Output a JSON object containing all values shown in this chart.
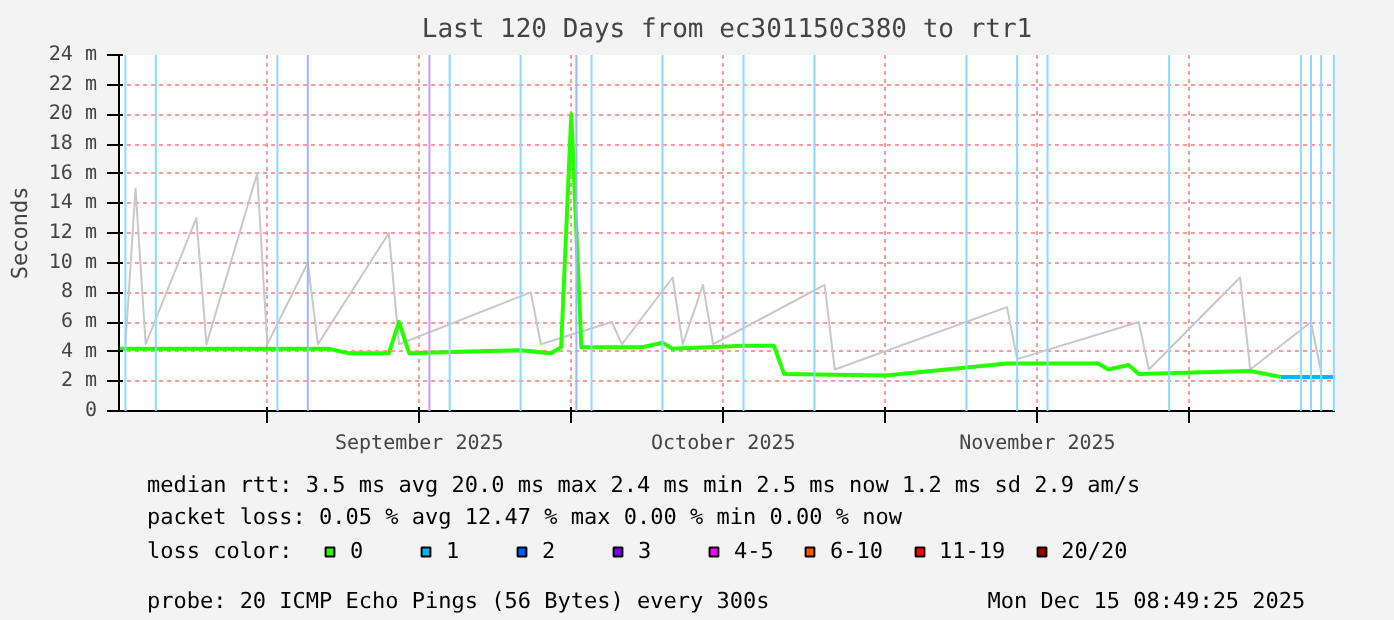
{
  "chart_data": {
    "type": "line",
    "title": "Last 120 Days from ec301150c380 to rtr1",
    "ylabel": "Seconds",
    "legend_title": "loss color:",
    "legend": "bottom",
    "grid": true,
    "xlim": [
      "2025-08-17T08:49",
      "2025-12-15T08:49"
    ],
    "xticks": [
      {
        "value": "2025-09-01",
        "label": null
      },
      {
        "value": "2025-09-16",
        "label": "September 2025"
      },
      {
        "value": "2025-10-01",
        "label": null
      },
      {
        "value": "2025-10-16",
        "label": "October 2025"
      },
      {
        "value": "2025-11-01",
        "label": null
      },
      {
        "value": "2025-11-16",
        "label": "November 2025"
      },
      {
        "value": "2025-12-01",
        "label": null
      }
    ],
    "ylim": [
      0,
      24
    ],
    "yticks": [
      0,
      {
        "value": 2,
        "label": "2 m"
      },
      {
        "value": 4,
        "label": "4 m"
      },
      {
        "value": 6,
        "label": "6 m"
      },
      {
        "value": 8,
        "label": "8 m"
      },
      {
        "value": 10,
        "label": "10 m"
      },
      {
        "value": 12,
        "label": "12 m"
      },
      {
        "value": 14,
        "label": "14 m"
      },
      {
        "value": 16,
        "label": "16 m"
      },
      {
        "value": 18,
        "label": "18 m"
      },
      {
        "value": 20,
        "label": "20 m"
      },
      {
        "value": 22,
        "label": "22 m"
      },
      {
        "value": 24,
        "label": "24 m"
      }
    ],
    "series": [
      {
        "color": "#c8c8c8",
        "x": [
          "2025-08-18",
          "2025-08-19",
          "2025-08-20",
          "2025-08-25",
          "2025-08-26",
          "2025-08-31",
          "2025-09-01",
          "2025-09-05",
          "2025-09-06",
          "2025-09-13",
          "2025-09-14",
          "2025-09-27",
          "2025-09-28",
          "2025-10-05",
          "2025-10-06",
          "2025-10-11",
          "2025-10-12",
          "2025-10-14",
          "2025-10-15",
          "2025-10-26",
          "2025-10-27",
          "2025-11-13",
          "2025-11-14",
          "2025-11-26",
          "2025-11-27",
          "2025-12-06",
          "2025-12-07",
          "2025-12-13",
          "2025-12-14"
        ],
        "values": [
          4.5,
          15,
          4.5,
          13,
          4.5,
          16,
          4.5,
          10,
          4.5,
          12,
          4.5,
          8,
          4.5,
          6,
          4.5,
          9,
          4.5,
          8.5,
          4.5,
          8.5,
          2.8,
          7,
          3.5,
          6,
          2.8,
          9,
          2.8,
          6,
          2.6
        ]
      },
      {
        "name": "0",
        "color": "#26ff00",
        "x": [
          "2025-08-17T09:00",
          "2025-08-24",
          "2025-08-31",
          "2025-09-07",
          "2025-09-09",
          "2025-09-13",
          "2025-09-14",
          "2025-09-15",
          "2025-09-20",
          "2025-09-26",
          "2025-09-29",
          "2025-09-30",
          "2025-10-01",
          "2025-10-02",
          "2025-10-08",
          "2025-10-10",
          "2025-10-11",
          "2025-10-18",
          "2025-10-21",
          "2025-10-22",
          "2025-11-01",
          "2025-11-13",
          "2025-11-22",
          "2025-11-23",
          "2025-11-25",
          "2025-11-26",
          "2025-12-07",
          "2025-12-10"
        ],
        "values": [
          4.2,
          4.2,
          4.2,
          4.2,
          3.9,
          3.9,
          6.0,
          3.9,
          4.0,
          4.1,
          3.9,
          4.3,
          20.0,
          4.3,
          4.3,
          4.6,
          4.2,
          4.4,
          4.4,
          2.5,
          2.4,
          3.2,
          3.2,
          2.8,
          3.1,
          2.5,
          2.7,
          2.3
        ]
      },
      {
        "name": "1",
        "color": "#00b8ff",
        "x": [
          "2025-12-10",
          "2025-12-15T08:00"
        ],
        "values": [
          2.3,
          2.3
        ]
      },
      {
        "name": "2",
        "color": "#0059ff"
      },
      {
        "name": "3",
        "color": "#7e00ff"
      },
      {
        "name": "4-5",
        "color": "#ff00ff"
      },
      {
        "name": "6-10",
        "color": "#ff5500"
      },
      {
        "name": "11-19",
        "color": "#ff0000"
      },
      {
        "name": "20/20",
        "color": "#a10000"
      }
    ],
    "ref_lines": [
      {
        "axis": "x",
        "value": "2025-08-18",
        "color": "#8fd8ff"
      },
      {
        "axis": "x",
        "value": "2025-08-21",
        "color": "#8fd8ff"
      },
      {
        "axis": "x",
        "value": "2025-09-02",
        "color": "#8fd8ff"
      },
      {
        "axis": "x",
        "value": "2025-09-05",
        "color": "#99b8ff"
      },
      {
        "axis": "x",
        "value": "2025-09-17",
        "color": "#cc99ff"
      },
      {
        "axis": "x",
        "value": "2025-09-19",
        "color": "#8fd8ff"
      },
      {
        "axis": "x",
        "value": "2025-09-26",
        "color": "#8fd8ff"
      },
      {
        "axis": "x",
        "value": "2025-10-01T12:00",
        "color": "#99b8ff"
      },
      {
        "axis": "x",
        "value": "2025-10-03",
        "color": "#8fd8ff"
      },
      {
        "axis": "x",
        "value": "2025-10-10",
        "color": "#8fd8ff"
      },
      {
        "axis": "x",
        "value": "2025-10-18",
        "color": "#8fd8ff"
      },
      {
        "axis": "x",
        "value": "2025-10-25",
        "color": "#8fd8ff"
      },
      {
        "axis": "x",
        "value": "2025-11-09",
        "color": "#8fd8ff"
      },
      {
        "axis": "x",
        "value": "2025-11-14",
        "color": "#8fd8ff"
      },
      {
        "axis": "x",
        "value": "2025-11-17",
        "color": "#8fd8ff"
      },
      {
        "axis": "x",
        "value": "2025-11-29",
        "color": "#8fd8ff"
      },
      {
        "axis": "x",
        "value": "2025-12-12",
        "color": "#8fd8ff"
      },
      {
        "axis": "x",
        "value": "2025-12-13",
        "color": "#8fd8ff"
      },
      {
        "axis": "x",
        "value": "2025-12-14",
        "color": "#8fd8ff"
      },
      {
        "axis": "x",
        "value": "2025-12-15T06:00",
        "color": "#8fd8ff"
      }
    ],
    "annotations": [
      "median rtt:  3.5 ms avg  20.0 ms max  2.4 ms min  2.5 ms now  1.2 ms sd  2.9   am/s",
      "packet loss: 0.05 % avg  12.47 % max  0.00 % min  0.00 % now",
      "probe:       20 ICMP Echo Pings (56 Bytes) every 300s",
      "Mon Dec 15 08:49:25 2025"
    ]
  }
}
